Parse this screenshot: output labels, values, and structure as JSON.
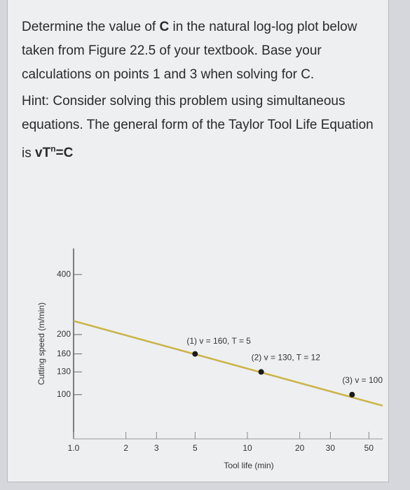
{
  "question": {
    "before": "Determine the value of ",
    "bold": "C",
    "after": " in the natural log-log plot below taken from Figure 22.5 of your textbook. Base your calculations on points 1 and 3 when solving for C."
  },
  "hint": {
    "text": "Hint: Consider solving this problem using simultaneous equations. The general form of the Taylor Tool Life Equation is ",
    "equation_base": "vT",
    "equation_exp": "n",
    "equation_end": "=C"
  },
  "chart_data": {
    "type": "line",
    "x_label": "Tool life (min)",
    "y_label": "Cutting speed (m/min)",
    "log_x": true,
    "log_y": true,
    "grid": false,
    "xlim": [
      1,
      60
    ],
    "ylim": [
      60,
      540
    ],
    "xticks": [
      {
        "value": 1,
        "label": "1.0"
      },
      2,
      3,
      5,
      10,
      20,
      30,
      50
    ],
    "yticks": [
      100,
      130,
      160,
      200,
      400
    ],
    "line": {
      "color": "#c9b448",
      "x": [
        1,
        60
      ],
      "values": [
        234,
        88
      ]
    },
    "points": {
      "color": "#1a1a1a",
      "x": [
        5,
        12,
        40
      ],
      "values": [
        160,
        130,
        100
      ],
      "labels": [
        "(1) v = 160, T = 5",
        "(2) v = 130, T = 12",
        "(3) v = 100"
      ]
    }
  }
}
